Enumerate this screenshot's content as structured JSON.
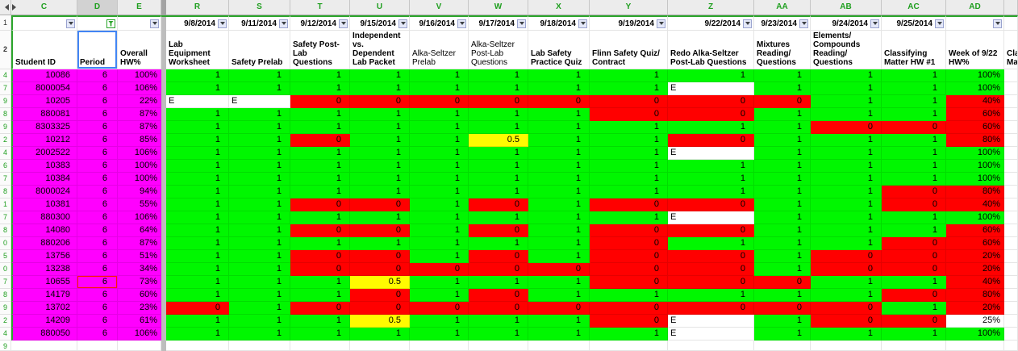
{
  "colors": {
    "g": "#00f700",
    "r": "#ff0000",
    "y": "#fffb00",
    "w": "#ffffff",
    "magenta": "#ff00fe",
    "filter_range_green": "#2ba52b",
    "header_letter_green": "#1f9f1f",
    "selection_blue": "#4285f4",
    "flag_red": "#ff1a00"
  },
  "gutter": {
    "filter_row_label": "1",
    "header_row_label": "2",
    "empty_row_label": "9"
  },
  "columns": [
    {
      "letter": "C",
      "width": 82,
      "kind": "id",
      "filter": "inactive",
      "header": "Student ID",
      "bold": true
    },
    {
      "letter": "D",
      "width": 50,
      "kind": "period",
      "filter": "active",
      "header": "Period",
      "bold": true,
      "selected": true
    },
    {
      "letter": "E",
      "width": 54,
      "kind": "overall",
      "filter": "inactive",
      "header": "Overall HW%",
      "bold": true
    },
    {
      "letter": "",
      "width": 6,
      "kind": "divider"
    },
    {
      "letter": "R",
      "width": 78,
      "kind": "score",
      "date": "9/8/2014",
      "filter": "inactive",
      "header": "Lab Equipment Worksheet",
      "bold": true
    },
    {
      "letter": "S",
      "width": 76,
      "kind": "score",
      "date": "9/11/2014",
      "filter": "inactive",
      "header": "Safety Prelab",
      "bold": true
    },
    {
      "letter": "T",
      "width": 74,
      "kind": "score",
      "date": "9/12/2014",
      "filter": "inactive",
      "header": "Safety Post-Lab Questions",
      "bold": true
    },
    {
      "letter": "U",
      "width": 74,
      "kind": "score",
      "date": "9/15/2014",
      "filter": "inactive",
      "header": "Independent vs. Dependent Lab Packet",
      "bold": true
    },
    {
      "letter": "V",
      "width": 73,
      "kind": "score",
      "date": "9/16/2014",
      "filter": "inactive",
      "header": "Alka-Seltzer Prelab",
      "bold": false
    },
    {
      "letter": "W",
      "width": 74,
      "kind": "score",
      "date": "9/17/2014",
      "filter": "inactive",
      "header": "Alka-Seltzer Post-Lab Questions",
      "bold": false
    },
    {
      "letter": "X",
      "width": 76,
      "kind": "score",
      "date": "9/18/2014",
      "filter": "inactive",
      "header": "Lab Safety Practice Quiz",
      "bold": true
    },
    {
      "letter": "Y",
      "width": 97,
      "kind": "score",
      "date": "9/19/2014",
      "filter": "inactive",
      "header": "Flinn Safety Quiz/Contract",
      "bold": true
    },
    {
      "letter": "Z",
      "width": 107,
      "kind": "score",
      "date": "9/22/2014",
      "filter": "inactive",
      "header": "Redo Alka-Seltzer Post-Lab Questions",
      "bold": true
    },
    {
      "letter": "AA",
      "width": 70,
      "kind": "score",
      "date": "9/23/2014",
      "filter": "inactive",
      "header": "Mixtures Reading/Questions",
      "bold": true
    },
    {
      "letter": "AB",
      "width": 88,
      "kind": "score",
      "date": "9/24/2014",
      "filter": "inactive",
      "header": "Elements/Compounds Reading/Questions",
      "bold": true
    },
    {
      "letter": "AC",
      "width": 80,
      "kind": "score",
      "date": "9/25/2014",
      "filter": "inactive",
      "header": "Classifying Matter HW #1",
      "bold": true
    },
    {
      "letter": "AD",
      "width": 72,
      "kind": "week",
      "date": "",
      "filter": "inactive",
      "header": "Week of 9/22 HW%",
      "bold": true
    },
    {
      "letter": "",
      "width": 17,
      "kind": "clipped",
      "header": "Cla Mat",
      "bold": true
    }
  ],
  "rows": [
    {
      "n": "4",
      "id": "10086",
      "period": "6",
      "overall": "100%",
      "scores": [
        [
          "1",
          "g"
        ],
        [
          "1",
          "g"
        ],
        [
          "1",
          "g"
        ],
        [
          "1",
          "g"
        ],
        [
          "1",
          "g"
        ],
        [
          "1",
          "g"
        ],
        [
          "1",
          "g"
        ],
        [
          "1",
          "g"
        ],
        [
          "1",
          "g"
        ],
        [
          "1",
          "g"
        ],
        [
          "1",
          "g"
        ],
        [
          "1",
          "g"
        ]
      ],
      "week": [
        "100%",
        "g"
      ]
    },
    {
      "n": "7",
      "id": "8000054",
      "period": "6",
      "overall": "106%",
      "scores": [
        [
          "1",
          "g"
        ],
        [
          "1",
          "g"
        ],
        [
          "1",
          "g"
        ],
        [
          "1",
          "g"
        ],
        [
          "1",
          "g"
        ],
        [
          "1",
          "g"
        ],
        [
          "1",
          "g"
        ],
        [
          "1",
          "g"
        ],
        [
          "E",
          "w"
        ],
        [
          "1",
          "g"
        ],
        [
          "1",
          "g"
        ],
        [
          "1",
          "g"
        ]
      ],
      "week": [
        "100%",
        "g"
      ]
    },
    {
      "n": "9",
      "id": "10205",
      "period": "6",
      "overall": "22%",
      "scores": [
        [
          "E",
          "w"
        ],
        [
          "E",
          "w"
        ],
        [
          "0",
          "r"
        ],
        [
          "0",
          "r"
        ],
        [
          "0",
          "r"
        ],
        [
          "0",
          "r"
        ],
        [
          "0",
          "r"
        ],
        [
          "0",
          "r"
        ],
        [
          "0",
          "r"
        ],
        [
          "0",
          "r"
        ],
        [
          "1",
          "g"
        ],
        [
          "1",
          "g"
        ]
      ],
      "week": [
        "40%",
        "r"
      ]
    },
    {
      "n": "8",
      "id": "880081",
      "period": "6",
      "overall": "87%",
      "scores": [
        [
          "1",
          "g"
        ],
        [
          "1",
          "g"
        ],
        [
          "1",
          "g"
        ],
        [
          "1",
          "g"
        ],
        [
          "1",
          "g"
        ],
        [
          "1",
          "g"
        ],
        [
          "1",
          "g"
        ],
        [
          "0",
          "r"
        ],
        [
          "0",
          "r"
        ],
        [
          "1",
          "g"
        ],
        [
          "1",
          "g"
        ],
        [
          "1",
          "g"
        ]
      ],
      "week": [
        "60%",
        "r"
      ]
    },
    {
      "n": "9",
      "id": "8303325",
      "period": "6",
      "overall": "87%",
      "scores": [
        [
          "1",
          "g"
        ],
        [
          "1",
          "g"
        ],
        [
          "1",
          "g"
        ],
        [
          "1",
          "g"
        ],
        [
          "1",
          "g"
        ],
        [
          "1",
          "g"
        ],
        [
          "1",
          "g"
        ],
        [
          "1",
          "g"
        ],
        [
          "1",
          "g"
        ],
        [
          "1",
          "g"
        ],
        [
          "0",
          "r"
        ],
        [
          "0",
          "r"
        ]
      ],
      "week": [
        "60%",
        "r"
      ]
    },
    {
      "n": "2",
      "id": "10212",
      "period": "6",
      "overall": "85%",
      "scores": [
        [
          "1",
          "g"
        ],
        [
          "1",
          "g"
        ],
        [
          "0",
          "r"
        ],
        [
          "1",
          "g"
        ],
        [
          "1",
          "g"
        ],
        [
          "0.5",
          "y"
        ],
        [
          "1",
          "g"
        ],
        [
          "1",
          "g"
        ],
        [
          "0",
          "r"
        ],
        [
          "1",
          "g"
        ],
        [
          "1",
          "g"
        ],
        [
          "1",
          "g"
        ]
      ],
      "week": [
        "80%",
        "r"
      ]
    },
    {
      "n": "4",
      "id": "2002522",
      "period": "6",
      "overall": "106%",
      "scores": [
        [
          "1",
          "g"
        ],
        [
          "1",
          "g"
        ],
        [
          "1",
          "g"
        ],
        [
          "1",
          "g"
        ],
        [
          "1",
          "g"
        ],
        [
          "1",
          "g"
        ],
        [
          "1",
          "g"
        ],
        [
          "1",
          "g"
        ],
        [
          "E",
          "w"
        ],
        [
          "1",
          "g"
        ],
        [
          "1",
          "g"
        ],
        [
          "1",
          "g"
        ]
      ],
      "week": [
        "100%",
        "g"
      ]
    },
    {
      "n": "6",
      "id": "10383",
      "period": "6",
      "overall": "100%",
      "scores": [
        [
          "1",
          "g"
        ],
        [
          "1",
          "g"
        ],
        [
          "1",
          "g"
        ],
        [
          "1",
          "g"
        ],
        [
          "1",
          "g"
        ],
        [
          "1",
          "g"
        ],
        [
          "1",
          "g"
        ],
        [
          "1",
          "g"
        ],
        [
          "1",
          "g"
        ],
        [
          "1",
          "g"
        ],
        [
          "1",
          "g"
        ],
        [
          "1",
          "g"
        ]
      ],
      "week": [
        "100%",
        "g"
      ]
    },
    {
      "n": "7",
      "id": "10384",
      "period": "6",
      "overall": "100%",
      "scores": [
        [
          "1",
          "g"
        ],
        [
          "1",
          "g"
        ],
        [
          "1",
          "g"
        ],
        [
          "1",
          "g"
        ],
        [
          "1",
          "g"
        ],
        [
          "1",
          "g"
        ],
        [
          "1",
          "g"
        ],
        [
          "1",
          "g"
        ],
        [
          "1",
          "g"
        ],
        [
          "1",
          "g"
        ],
        [
          "1",
          "g"
        ],
        [
          "1",
          "g"
        ]
      ],
      "week": [
        "100%",
        "g"
      ]
    },
    {
      "n": "8",
      "id": "8000024",
      "period": "6",
      "overall": "94%",
      "scores": [
        [
          "1",
          "g"
        ],
        [
          "1",
          "g"
        ],
        [
          "1",
          "g"
        ],
        [
          "1",
          "g"
        ],
        [
          "1",
          "g"
        ],
        [
          "1",
          "g"
        ],
        [
          "1",
          "g"
        ],
        [
          "1",
          "g"
        ],
        [
          "1",
          "g"
        ],
        [
          "1",
          "g"
        ],
        [
          "1",
          "g"
        ],
        [
          "0",
          "r"
        ]
      ],
      "week": [
        "80%",
        "r"
      ]
    },
    {
      "n": "1",
      "id": "10381",
      "period": "6",
      "overall": "55%",
      "scores": [
        [
          "1",
          "g"
        ],
        [
          "1",
          "g"
        ],
        [
          "0",
          "r"
        ],
        [
          "0",
          "r"
        ],
        [
          "1",
          "g"
        ],
        [
          "0",
          "r"
        ],
        [
          "1",
          "g"
        ],
        [
          "0",
          "r"
        ],
        [
          "0",
          "r"
        ],
        [
          "1",
          "g"
        ],
        [
          "1",
          "g"
        ],
        [
          "0",
          "r"
        ]
      ],
      "week": [
        "40%",
        "r"
      ]
    },
    {
      "n": "7",
      "id": "880300",
      "period": "6",
      "overall": "106%",
      "scores": [
        [
          "1",
          "g"
        ],
        [
          "1",
          "g"
        ],
        [
          "1",
          "g"
        ],
        [
          "1",
          "g"
        ],
        [
          "1",
          "g"
        ],
        [
          "1",
          "g"
        ],
        [
          "1",
          "g"
        ],
        [
          "1",
          "g"
        ],
        [
          "E",
          "w"
        ],
        [
          "1",
          "g"
        ],
        [
          "1",
          "g"
        ],
        [
          "1",
          "g"
        ]
      ],
      "week": [
        "100%",
        "g"
      ]
    },
    {
      "n": "8",
      "id": "14080",
      "period": "6",
      "overall": "64%",
      "scores": [
        [
          "1",
          "g"
        ],
        [
          "1",
          "g"
        ],
        [
          "0",
          "r"
        ],
        [
          "0",
          "r"
        ],
        [
          "1",
          "g"
        ],
        [
          "0",
          "r"
        ],
        [
          "1",
          "g"
        ],
        [
          "0",
          "r"
        ],
        [
          "0",
          "r"
        ],
        [
          "1",
          "g"
        ],
        [
          "1",
          "g"
        ],
        [
          "1",
          "g"
        ]
      ],
      "week": [
        "60%",
        "r"
      ]
    },
    {
      "n": "0",
      "id": "880206",
      "period": "6",
      "overall": "87%",
      "scores": [
        [
          "1",
          "g"
        ],
        [
          "1",
          "g"
        ],
        [
          "1",
          "g"
        ],
        [
          "1",
          "g"
        ],
        [
          "1",
          "g"
        ],
        [
          "1",
          "g"
        ],
        [
          "1",
          "g"
        ],
        [
          "0",
          "r"
        ],
        [
          "1",
          "g"
        ],
        [
          "1",
          "g"
        ],
        [
          "1",
          "g"
        ],
        [
          "0",
          "r"
        ]
      ],
      "week": [
        "60%",
        "r"
      ]
    },
    {
      "n": "5",
      "id": "13756",
      "period": "6",
      "overall": "51%",
      "scores": [
        [
          "1",
          "g"
        ],
        [
          "1",
          "g"
        ],
        [
          "0",
          "r"
        ],
        [
          "0",
          "r"
        ],
        [
          "1",
          "g"
        ],
        [
          "0",
          "r"
        ],
        [
          "1",
          "g"
        ],
        [
          "0",
          "r"
        ],
        [
          "0",
          "r"
        ],
        [
          "1",
          "g"
        ],
        [
          "0",
          "r"
        ],
        [
          "0",
          "r"
        ]
      ],
      "week": [
        "20%",
        "r"
      ]
    },
    {
      "n": "0",
      "id": "13238",
      "period": "6",
      "overall": "34%",
      "scores": [
        [
          "1",
          "g"
        ],
        [
          "1",
          "g"
        ],
        [
          "0",
          "r"
        ],
        [
          "0",
          "r"
        ],
        [
          "0",
          "r"
        ],
        [
          "0",
          "r"
        ],
        [
          "0",
          "r"
        ],
        [
          "0",
          "r"
        ],
        [
          "0",
          "r"
        ],
        [
          "1",
          "g"
        ],
        [
          "0",
          "r"
        ],
        [
          "0",
          "r"
        ]
      ],
      "week": [
        "20%",
        "r"
      ]
    },
    {
      "n": "7",
      "id": "10655",
      "period": "6",
      "overall": "73%",
      "flag": true,
      "scores": [
        [
          "1",
          "g"
        ],
        [
          "1",
          "g"
        ],
        [
          "1",
          "g"
        ],
        [
          "0.5",
          "y"
        ],
        [
          "1",
          "g"
        ],
        [
          "1",
          "g"
        ],
        [
          "1",
          "g"
        ],
        [
          "0",
          "r"
        ],
        [
          "0",
          "r"
        ],
        [
          "0",
          "r"
        ],
        [
          "1",
          "g"
        ],
        [
          "1",
          "g"
        ]
      ],
      "week": [
        "40%",
        "r"
      ]
    },
    {
      "n": "8",
      "id": "14179",
      "period": "6",
      "overall": "60%",
      "scores": [
        [
          "1",
          "g"
        ],
        [
          "1",
          "g"
        ],
        [
          "1",
          "g"
        ],
        [
          "0",
          "r"
        ],
        [
          "1",
          "g"
        ],
        [
          "0",
          "r"
        ],
        [
          "1",
          "g"
        ],
        [
          "1",
          "g"
        ],
        [
          "1",
          "g"
        ],
        [
          "1",
          "g"
        ],
        [
          "1",
          "g"
        ],
        [
          "0",
          "r"
        ]
      ],
      "week": [
        "80%",
        "r"
      ]
    },
    {
      "n": "9",
      "id": "13702",
      "period": "6",
      "overall": "23%",
      "scores": [
        [
          "0",
          "r"
        ],
        [
          "1",
          "g"
        ],
        [
          "0",
          "r"
        ],
        [
          "0",
          "r"
        ],
        [
          "0",
          "r"
        ],
        [
          "0",
          "r"
        ],
        [
          "0",
          "r"
        ],
        [
          "0",
          "r"
        ],
        [
          "0",
          "r"
        ],
        [
          "0",
          "r"
        ],
        [
          "0",
          "r"
        ],
        [
          "1",
          "g"
        ]
      ],
      "week": [
        "20%",
        "r"
      ]
    },
    {
      "n": "2",
      "id": "14209",
      "period": "6",
      "overall": "61%",
      "scores": [
        [
          "1",
          "g"
        ],
        [
          "1",
          "g"
        ],
        [
          "1",
          "g"
        ],
        [
          "0.5",
          "y"
        ],
        [
          "1",
          "g"
        ],
        [
          "1",
          "g"
        ],
        [
          "1",
          "g"
        ],
        [
          "0",
          "r"
        ],
        [
          "E",
          "w"
        ],
        [
          "1",
          "g"
        ],
        [
          "0",
          "r"
        ],
        [
          "0",
          "r"
        ]
      ],
      "week": [
        "25%",
        "w"
      ]
    },
    {
      "n": "4",
      "id": "880050",
      "period": "6",
      "overall": "106%",
      "scores": [
        [
          "1",
          "g"
        ],
        [
          "1",
          "g"
        ],
        [
          "1",
          "g"
        ],
        [
          "1",
          "g"
        ],
        [
          "1",
          "g"
        ],
        [
          "1",
          "g"
        ],
        [
          "1",
          "g"
        ],
        [
          "1",
          "g"
        ],
        [
          "E",
          "w"
        ],
        [
          "1",
          "g"
        ],
        [
          "1",
          "g"
        ],
        [
          "1",
          "g"
        ]
      ],
      "week": [
        "100%",
        "g"
      ]
    }
  ]
}
